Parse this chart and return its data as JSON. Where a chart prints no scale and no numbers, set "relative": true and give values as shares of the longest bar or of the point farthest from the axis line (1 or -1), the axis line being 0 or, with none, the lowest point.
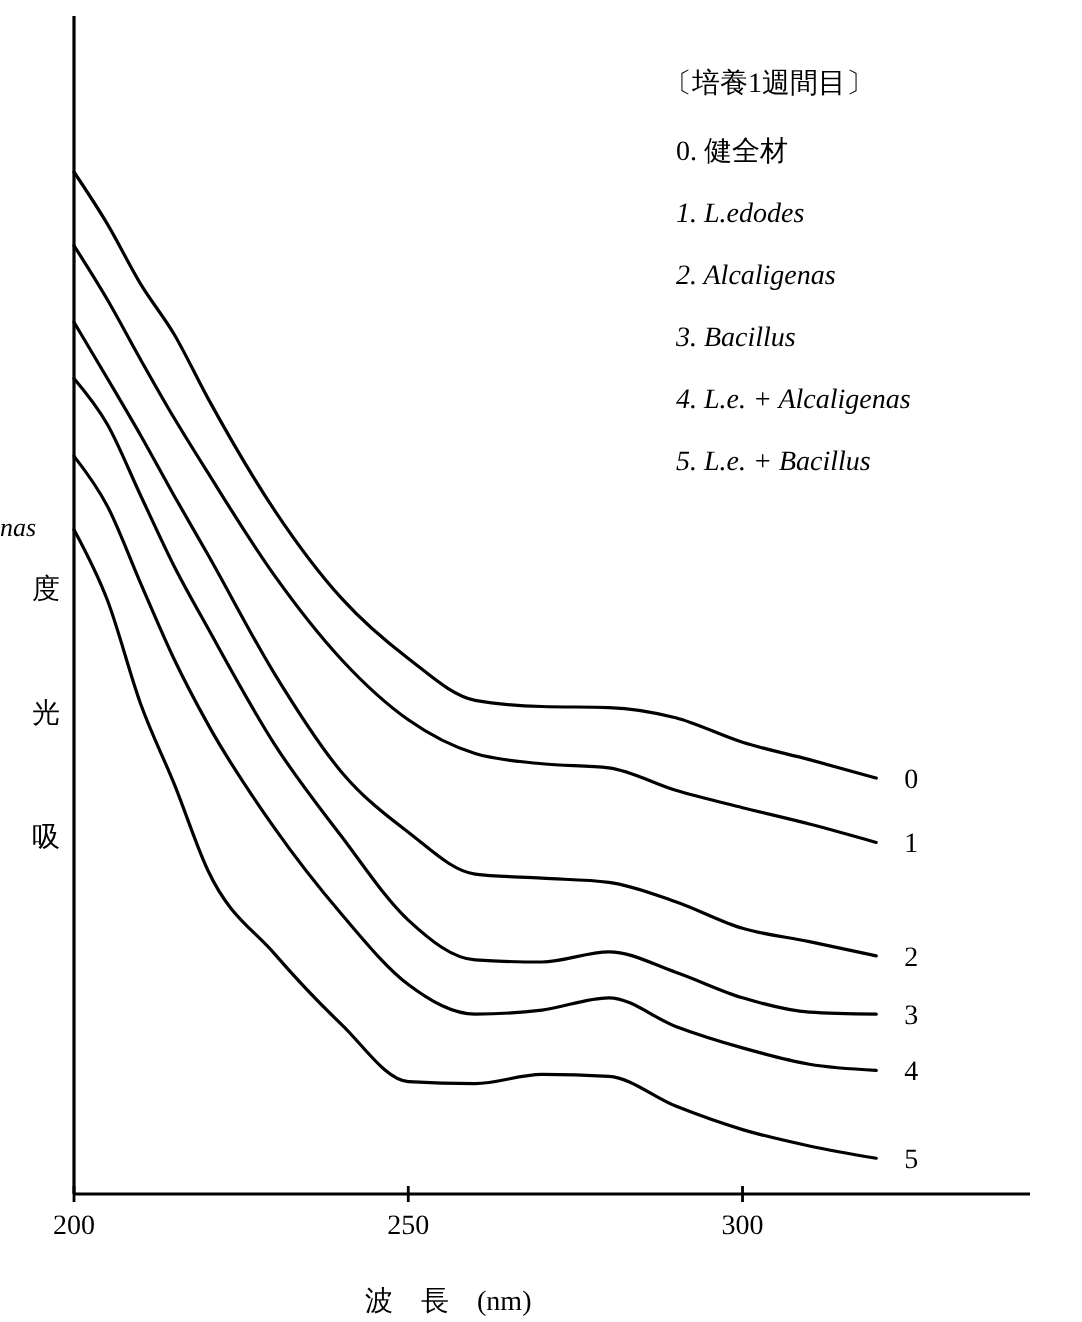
{
  "chart_data": {
    "type": "line",
    "relative": true,
    "title": "〔培養1週間目〕",
    "xlabel": "波　長　(nm)",
    "ylabel": "吸光度",
    "xlim": [
      200,
      343
    ],
    "xticks": [
      200,
      250,
      300
    ],
    "marker": "none",
    "line_style": "solid",
    "grid": false,
    "x": [
      200,
      205,
      210,
      215,
      220,
      230,
      240,
      250,
      260,
      270,
      280,
      290,
      300,
      310,
      320
    ],
    "series": [
      {
        "name": "0",
        "color": "#000000",
        "values": [
          1.0,
          0.949,
          0.89,
          0.841,
          0.779,
          0.669,
          0.583,
          0.524,
          0.483,
          0.477,
          0.476,
          0.466,
          0.442,
          0.425,
          0.407
        ]
      },
      {
        "name": "1",
        "color": "#000000",
        "values": [
          0.928,
          0.875,
          0.816,
          0.759,
          0.706,
          0.605,
          0.523,
          0.464,
          0.431,
          0.421,
          0.417,
          0.395,
          0.378,
          0.362,
          0.344
        ]
      },
      {
        "name": "2",
        "color": "#000000",
        "values": [
          0.853,
          0.798,
          0.742,
          0.683,
          0.626,
          0.509,
          0.413,
          0.354,
          0.313,
          0.309,
          0.305,
          0.286,
          0.26,
          0.247,
          0.233
        ]
      },
      {
        "name": "3",
        "color": "#000000",
        "values": [
          0.798,
          0.753,
          0.683,
          0.614,
          0.554,
          0.44,
          0.35,
          0.268,
          0.229,
          0.227,
          0.237,
          0.217,
          0.192,
          0.178,
          0.176
        ]
      },
      {
        "name": "4",
        "color": "#000000",
        "values": [
          0.722,
          0.673,
          0.597,
          0.523,
          0.46,
          0.358,
          0.274,
          0.205,
          0.176,
          0.18,
          0.192,
          0.164,
          0.143,
          0.127,
          0.121
        ]
      },
      {
        "name": "5",
        "color": "#000000",
        "values": [
          0.65,
          0.581,
          0.479,
          0.401,
          0.317,
          0.235,
          0.166,
          0.11,
          0.108,
          0.117,
          0.115,
          0.086,
          0.063,
          0.047,
          0.035
        ]
      }
    ],
    "annotations": [
      "0. 健全材",
      "1. L.edodes",
      "2. Alcaligenas",
      "3. Bacillus",
      "4. L.e. + Alcaligenas",
      "5. L.e. + Bacillus",
      "nas"
    ]
  }
}
